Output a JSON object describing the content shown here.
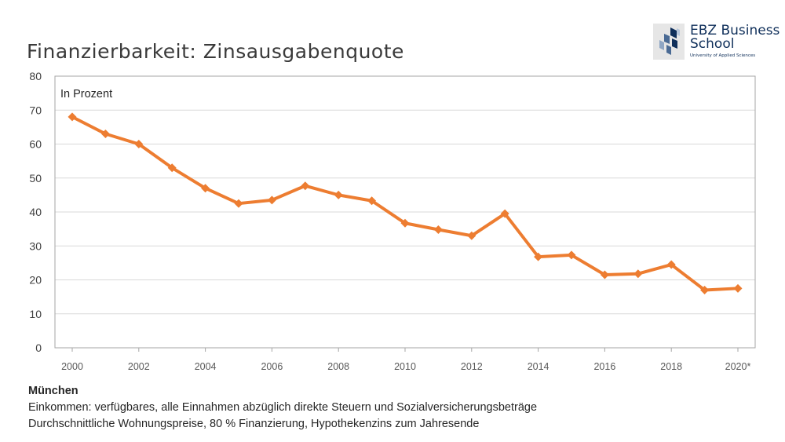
{
  "title": "Finanzierbarkeit: Zinsausgabenquote",
  "logo": {
    "line1": "EBZ Business",
    "line2": "School",
    "subtitle": "University of Applied Sciences",
    "color": "#0f2f5a"
  },
  "chart_data": {
    "type": "line",
    "annotation": "In Prozent",
    "x": [
      2000,
      2001,
      2002,
      2003,
      2004,
      2005,
      2006,
      2007,
      2008,
      2009,
      2010,
      2011,
      2012,
      2013,
      2014,
      2015,
      2016,
      2017,
      2018,
      2019,
      2020
    ],
    "xtick_labels": [
      "2000",
      "2002",
      "2004",
      "2006",
      "2008",
      "2010",
      "2012",
      "2014",
      "2016",
      "2018",
      "2020*"
    ],
    "xtick_values": [
      2000,
      2002,
      2004,
      2006,
      2008,
      2010,
      2012,
      2014,
      2016,
      2018,
      2020
    ],
    "series": [
      {
        "name": "Zinsausgabenquote München",
        "color": "#ed7d31",
        "values": [
          68,
          63,
          60,
          53,
          47,
          42.5,
          43.5,
          47.7,
          45,
          43.3,
          36.7,
          34.8,
          33,
          39.5,
          26.8,
          27.3,
          21.5,
          21.8,
          24.5,
          17,
          17.5
        ]
      }
    ],
    "ylim": [
      0,
      80
    ],
    "yticks": [
      0,
      10,
      20,
      30,
      40,
      50,
      60,
      70,
      80
    ],
    "grid": true
  },
  "footer": {
    "city": "München",
    "line1": "Einkommen: verfügbares, alle Einnahmen abzüglich direkte Steuern und Sozialversicherungsbeträge",
    "line2": "Durchschnittliche Wohnungspreise, 80 % Finanzierung, Hypothekenzins zum Jahresende"
  }
}
